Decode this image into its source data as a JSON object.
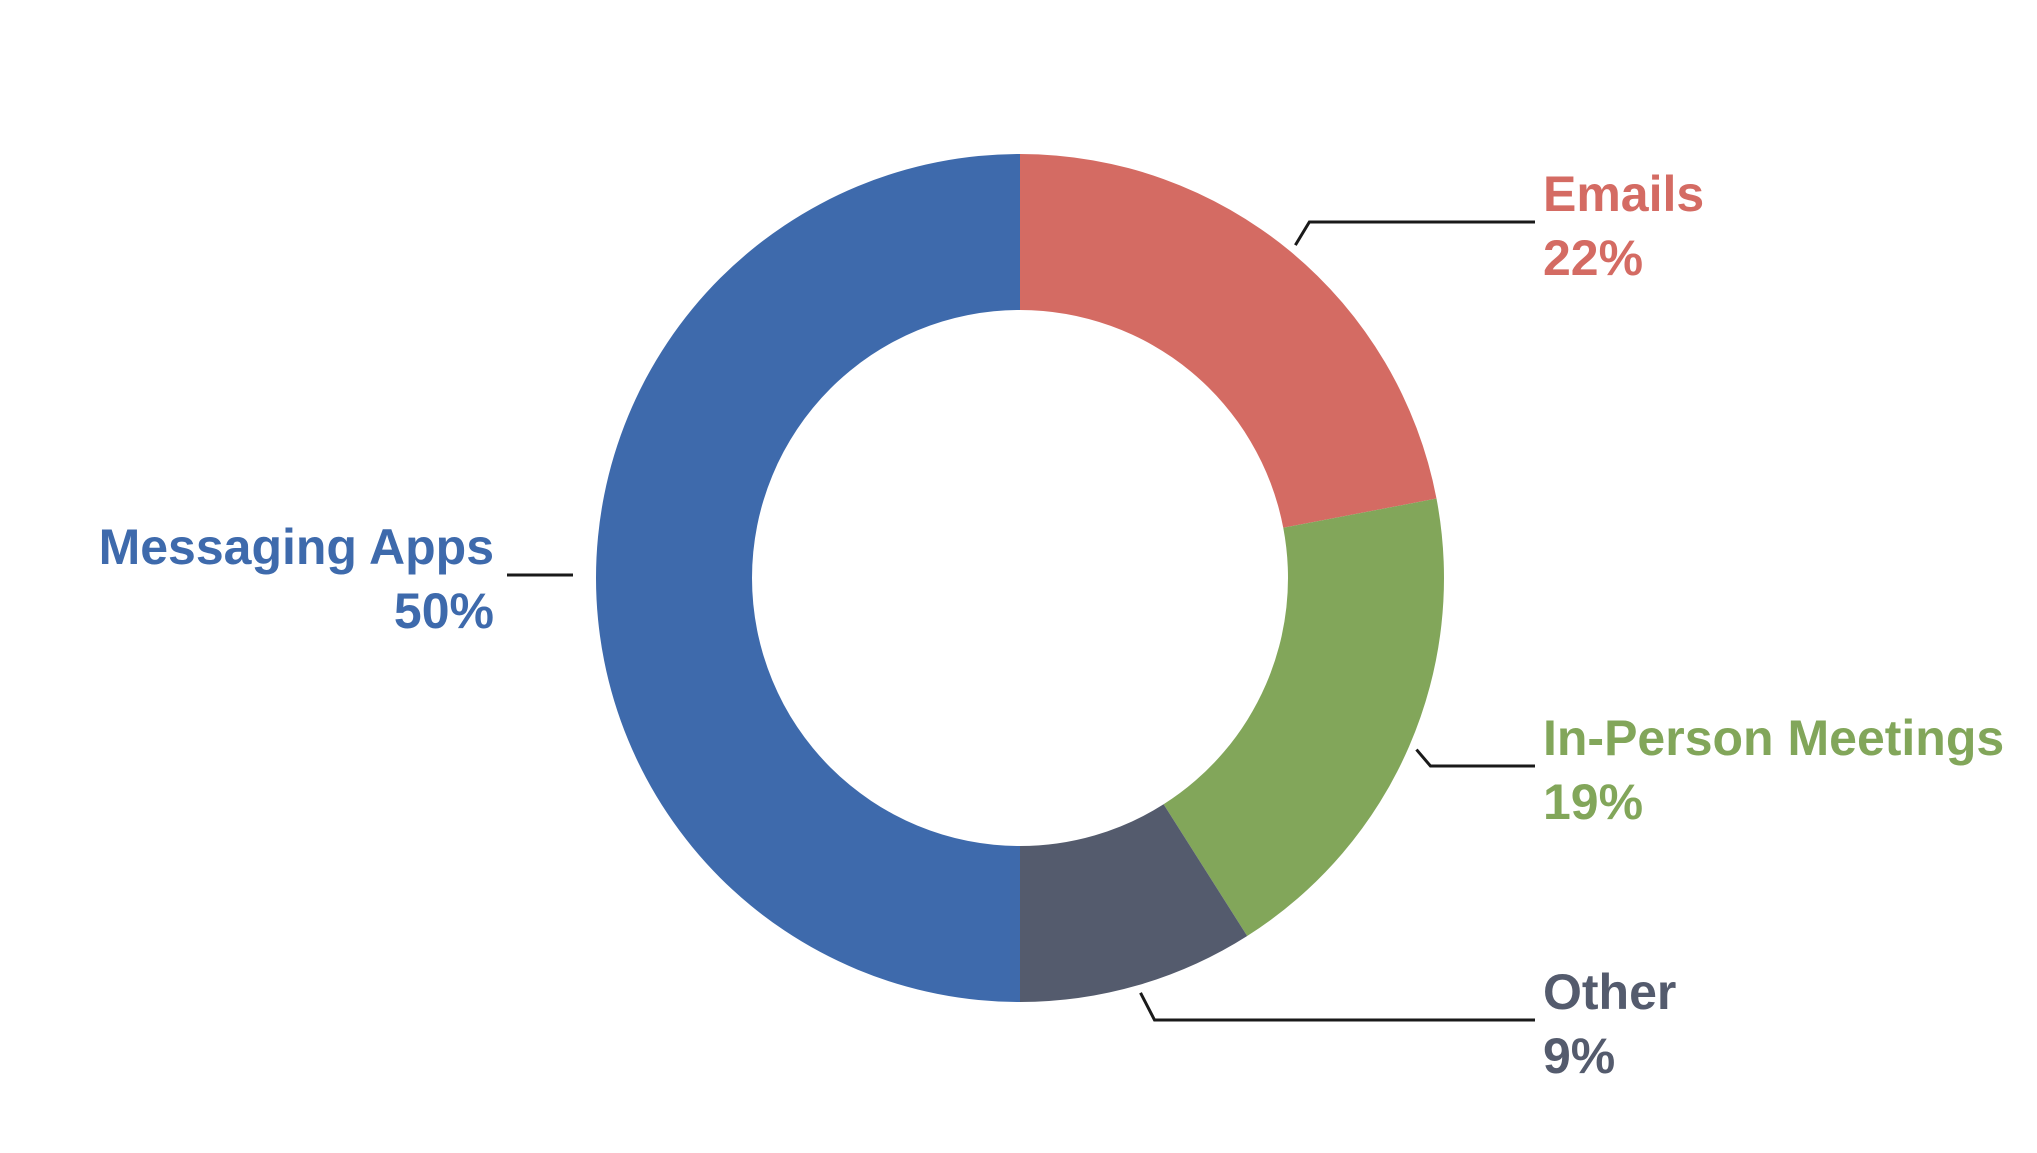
{
  "chart_data": {
    "type": "pie",
    "variant": "donut",
    "title": "",
    "start_angle_deg": 0,
    "direction": "clockwise",
    "slices": [
      {
        "label": "Emails",
        "value": 22,
        "display": "22%",
        "color": "#D46B63"
      },
      {
        "label": "In-Person Meetings",
        "value": 19,
        "display": "19%",
        "color": "#82A65A"
      },
      {
        "label": "Other",
        "value": 9,
        "display": "9%",
        "color": "#545B6D"
      },
      {
        "label": "Messaging Apps",
        "value": 50,
        "display": "50%",
        "color": "#3E6AAC"
      }
    ],
    "leader_line_color": "#1a1a1a",
    "legend": "none (direct labels with leader lines)"
  }
}
